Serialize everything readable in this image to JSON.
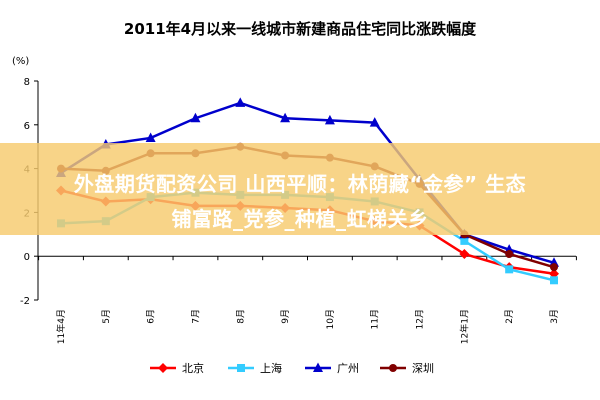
{
  "chart_data": {
    "type": "line",
    "title": "2011年4月以来一线城市新建商品住宅同比涨跌幅度",
    "ylabel": "(%)",
    "xlabel": "",
    "ylim": [
      -2,
      8
    ],
    "yticks": [
      -2,
      0,
      2,
      4,
      6,
      8
    ],
    "categories": [
      "11年4月",
      "5月",
      "6月",
      "7月",
      "8月",
      "9月",
      "10月",
      "11月",
      "12月",
      "12年1月",
      "2月",
      "3月"
    ],
    "grid": false,
    "legend_position": "bottom",
    "series": [
      {
        "name": "北京",
        "color": "#ff0000",
        "marker": "diamond",
        "values": [
          3.0,
          2.5,
          2.6,
          2.3,
          2.3,
          2.2,
          2.1,
          1.6,
          1.4,
          0.1,
          -0.5,
          -0.8
        ]
      },
      {
        "name": "上海",
        "color": "#33ccff",
        "marker": "square",
        "values": [
          1.5,
          1.6,
          2.7,
          2.9,
          2.8,
          2.8,
          2.7,
          2.5,
          2.0,
          0.7,
          -0.6,
          -1.1
        ]
      },
      {
        "name": "广州",
        "color": "#0000cc",
        "marker": "triangle",
        "values": [
          3.8,
          5.1,
          5.4,
          6.3,
          7.0,
          6.3,
          6.2,
          6.1,
          3.5,
          1.0,
          0.3,
          -0.3
        ]
      },
      {
        "name": "深圳",
        "color": "#800000",
        "marker": "circle",
        "values": [
          4.0,
          3.9,
          4.7,
          4.7,
          5.0,
          4.6,
          4.5,
          4.1,
          3.3,
          1.0,
          0.1,
          -0.5
        ]
      }
    ]
  },
  "watermark": {
    "line1": "外盘期货配资公司 山西平顺：林荫藏“金参” 生态",
    "line2": "铺富路_党参_种植_虹梯关乡"
  }
}
